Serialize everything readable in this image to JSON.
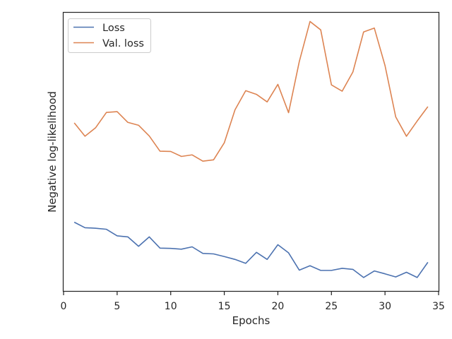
{
  "chart_data": {
    "type": "line",
    "xlabel": "Epochs",
    "ylabel": "Negative log-likelihood",
    "xlim": [
      0,
      35
    ],
    "ylim": [
      0,
      1
    ],
    "xticks": [
      0,
      5,
      10,
      15,
      20,
      25,
      30,
      35
    ],
    "yticks_labeled": false,
    "grid": false,
    "legend_position": "upper-left",
    "x": [
      1,
      2,
      3,
      4,
      5,
      6,
      7,
      8,
      9,
      10,
      11,
      12,
      13,
      14,
      15,
      16,
      17,
      18,
      19,
      20,
      21,
      22,
      23,
      24,
      25,
      26,
      27,
      28,
      29,
      30,
      31,
      32,
      33,
      34
    ],
    "series": [
      {
        "name": "Loss",
        "color": "#4c72b0",
        "values": [
          0.249,
          0.228,
          0.226,
          0.222,
          0.197,
          0.193,
          0.157,
          0.193,
          0.15,
          0.149,
          0.146,
          0.155,
          0.13,
          0.128,
          0.118,
          0.107,
          0.092,
          0.134,
          0.107,
          0.163,
          0.132,
          0.066,
          0.083,
          0.065,
          0.065,
          0.073,
          0.069,
          0.038,
          0.063,
          0.052,
          0.04,
          0.058,
          0.038,
          0.096
        ]
      },
      {
        "name": "Val. loss",
        "color": "#dd8452",
        "values": [
          0.628,
          0.577,
          0.61,
          0.668,
          0.671,
          0.63,
          0.619,
          0.578,
          0.52,
          0.519,
          0.5,
          0.506,
          0.482,
          0.487,
          0.552,
          0.678,
          0.751,
          0.737,
          0.708,
          0.775,
          0.667,
          0.862,
          1.015,
          0.983,
          0.773,
          0.749,
          0.822,
          0.975,
          0.99,
          0.847,
          0.651,
          0.577,
          0.635,
          0.69
        ]
      }
    ]
  }
}
